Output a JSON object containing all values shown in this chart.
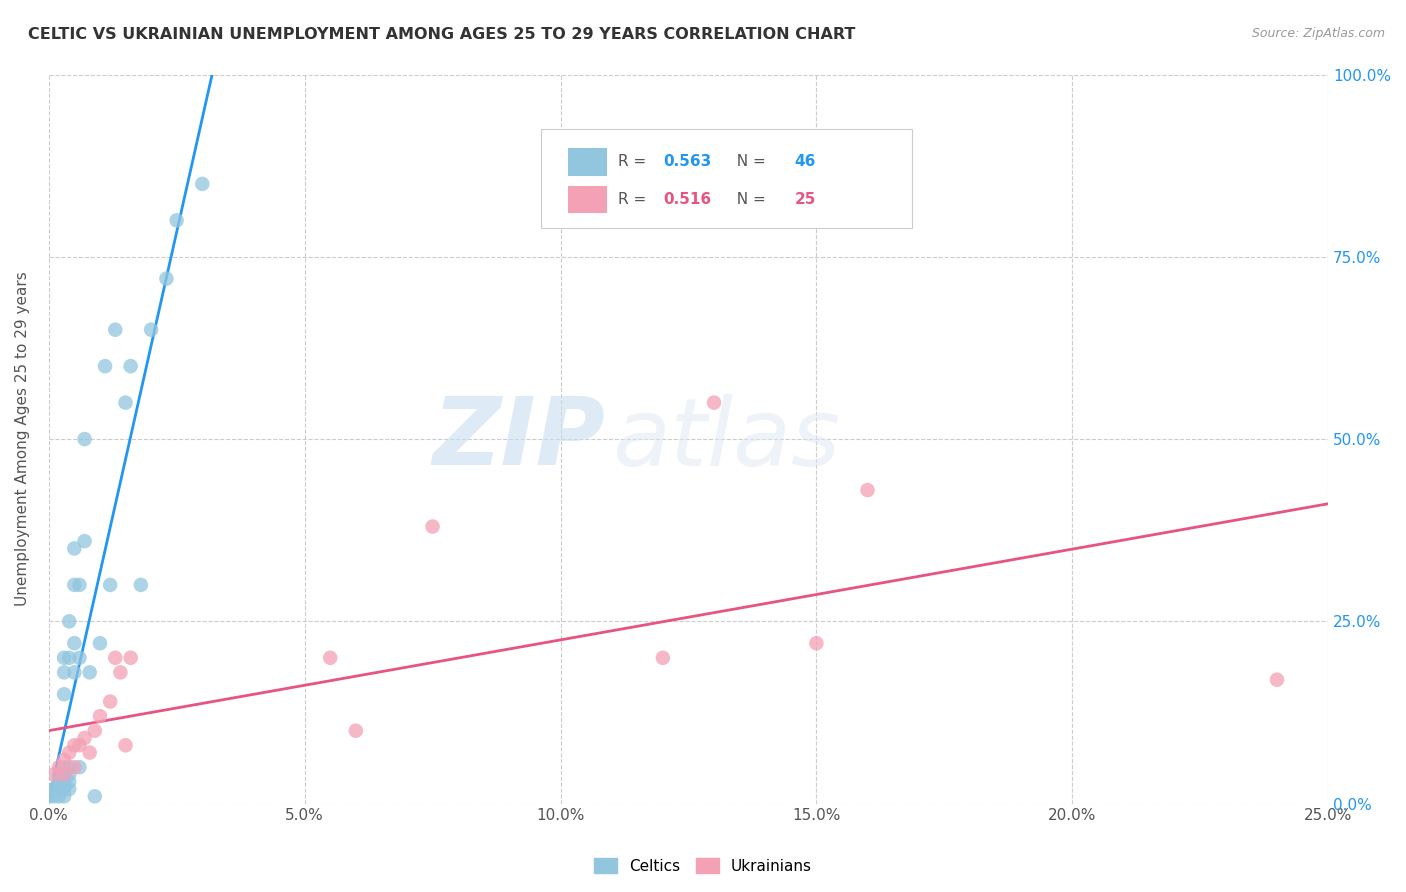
{
  "title": "CELTIC VS UKRAINIAN UNEMPLOYMENT AMONG AGES 25 TO 29 YEARS CORRELATION CHART",
  "source": "Source: ZipAtlas.com",
  "ylabel": "Unemployment Among Ages 25 to 29 years",
  "xlim": [
    0.0,
    0.25
  ],
  "ylim": [
    0.0,
    1.0
  ],
  "celtics_R": "0.563",
  "celtics_N": "46",
  "ukrainians_R": "0.516",
  "ukrainians_N": "25",
  "celtics_color": "#92c5de",
  "ukrainians_color": "#f4a0b5",
  "celtics_line_color": "#2196F3",
  "ukrainians_line_color": "#e75480",
  "background_color": "#ffffff",
  "watermark_zip": "ZIP",
  "watermark_atlas": "atlas",
  "celtics_x": [
    0.0,
    0.001,
    0.001,
    0.001,
    0.002,
    0.002,
    0.002,
    0.002,
    0.002,
    0.003,
    0.003,
    0.003,
    0.003,
    0.003,
    0.003,
    0.003,
    0.003,
    0.003,
    0.004,
    0.004,
    0.004,
    0.004,
    0.004,
    0.004,
    0.005,
    0.005,
    0.005,
    0.005,
    0.006,
    0.006,
    0.006,
    0.007,
    0.007,
    0.008,
    0.009,
    0.01,
    0.011,
    0.012,
    0.013,
    0.015,
    0.016,
    0.018,
    0.02,
    0.023,
    0.025,
    0.03
  ],
  "celtics_y": [
    0.01,
    0.01,
    0.02,
    0.02,
    0.01,
    0.02,
    0.03,
    0.03,
    0.04,
    0.01,
    0.02,
    0.02,
    0.03,
    0.04,
    0.05,
    0.15,
    0.18,
    0.2,
    0.02,
    0.03,
    0.04,
    0.05,
    0.2,
    0.25,
    0.18,
    0.22,
    0.3,
    0.35,
    0.05,
    0.2,
    0.3,
    0.36,
    0.5,
    0.18,
    0.01,
    0.22,
    0.6,
    0.3,
    0.65,
    0.55,
    0.6,
    0.3,
    0.65,
    0.72,
    0.8,
    0.85
  ],
  "ukrainians_x": [
    0.001,
    0.002,
    0.003,
    0.003,
    0.004,
    0.005,
    0.005,
    0.006,
    0.007,
    0.008,
    0.009,
    0.01,
    0.012,
    0.013,
    0.014,
    0.015,
    0.016,
    0.055,
    0.06,
    0.075,
    0.12,
    0.13,
    0.15,
    0.16,
    0.24
  ],
  "ukrainians_y": [
    0.04,
    0.05,
    0.04,
    0.06,
    0.07,
    0.05,
    0.08,
    0.08,
    0.09,
    0.07,
    0.1,
    0.12,
    0.14,
    0.2,
    0.18,
    0.08,
    0.2,
    0.2,
    0.1,
    0.38,
    0.2,
    0.55,
    0.22,
    0.43,
    0.17
  ]
}
